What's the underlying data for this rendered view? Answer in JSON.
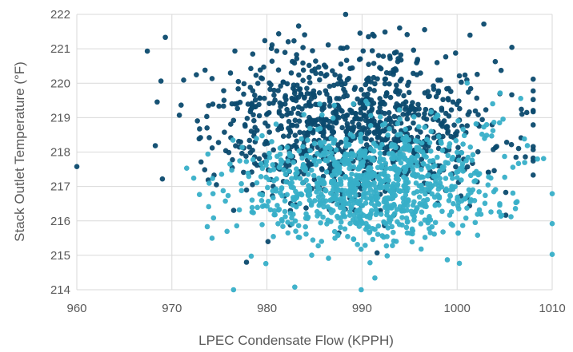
{
  "chart_data": {
    "type": "scatter",
    "title": "",
    "xlabel": "LPEC Condensate Flow (KPPH)",
    "ylabel": "Stack Outlet Temperature (°F)",
    "xlim": [
      960,
      1010
    ],
    "ylim": [
      214,
      222
    ],
    "x_ticks": [
      960,
      970,
      980,
      990,
      1000,
      1010
    ],
    "y_ticks": [
      214,
      215,
      216,
      217,
      218,
      219,
      220,
      221,
      222
    ],
    "grid": "both",
    "legend": "none",
    "point_count_per_series": 1000,
    "series": [
      {
        "color": "#0B4A6E",
        "cluster_center": [
          989,
          218.8
        ],
        "x_spread_sd": 7.5,
        "y_spread_sd": 1.1,
        "x_range": [
          960,
          1008
        ],
        "y_range": [
          214.8,
          222
        ]
      },
      {
        "color": "#37AFC8",
        "cluster_center": [
          991,
          217.1
        ],
        "x_spread_sd": 6.5,
        "y_spread_sd": 0.85,
        "x_range": [
          960,
          1010
        ],
        "y_range": [
          214,
          220.8
        ]
      }
    ]
  }
}
